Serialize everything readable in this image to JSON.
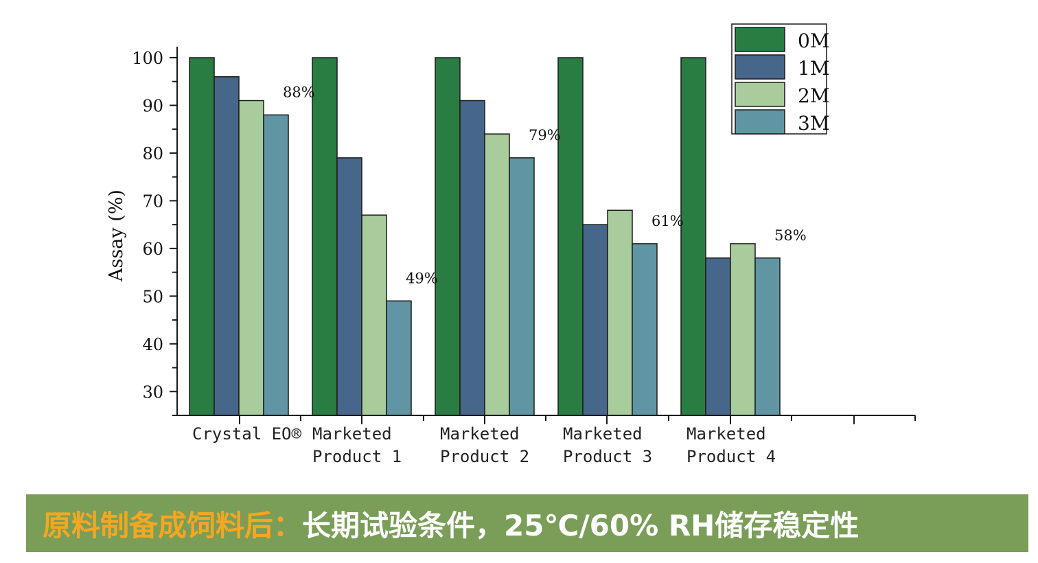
{
  "chart_data": {
    "type": "bar",
    "categories": [
      "Crystal EO®",
      "Marketed Product 1",
      "Marketed Product 2",
      "Marketed Product 3",
      "Marketed Product 4"
    ],
    "category_lines": [
      [
        "Crystal EO®"
      ],
      [
        "Marketed",
        "Product 1"
      ],
      [
        "Marketed",
        "Product 2"
      ],
      [
        "Marketed",
        "Product 3"
      ],
      [
        "Marketed",
        "Product 4"
      ]
    ],
    "series": [
      {
        "name": "0M",
        "color": "#2a7d42",
        "values": [
          100,
          100,
          100,
          100,
          100
        ]
      },
      {
        "name": "1M",
        "color": "#46678a",
        "values": [
          96,
          79,
          91,
          65,
          58
        ]
      },
      {
        "name": "2M",
        "color": "#a8cc9b",
        "values": [
          91,
          67,
          84,
          68,
          61
        ]
      },
      {
        "name": "3M",
        "color": "#6095a4",
        "values": [
          88,
          49,
          79,
          61,
          58
        ]
      }
    ],
    "data_labels": [
      "88%",
      "49%",
      "79%",
      "61%",
      "58%"
    ],
    "ylabel": "Assay (%)",
    "xlabel": "",
    "ylim": [
      25,
      100
    ],
    "yticks": [
      30,
      40,
      50,
      60,
      70,
      80,
      90,
      100
    ],
    "legend_position": "top-right"
  },
  "banner": {
    "title": "原料制备成饲料后：",
    "subtitle": "长期试验条件，25℃/60% RH储存稳定性"
  }
}
